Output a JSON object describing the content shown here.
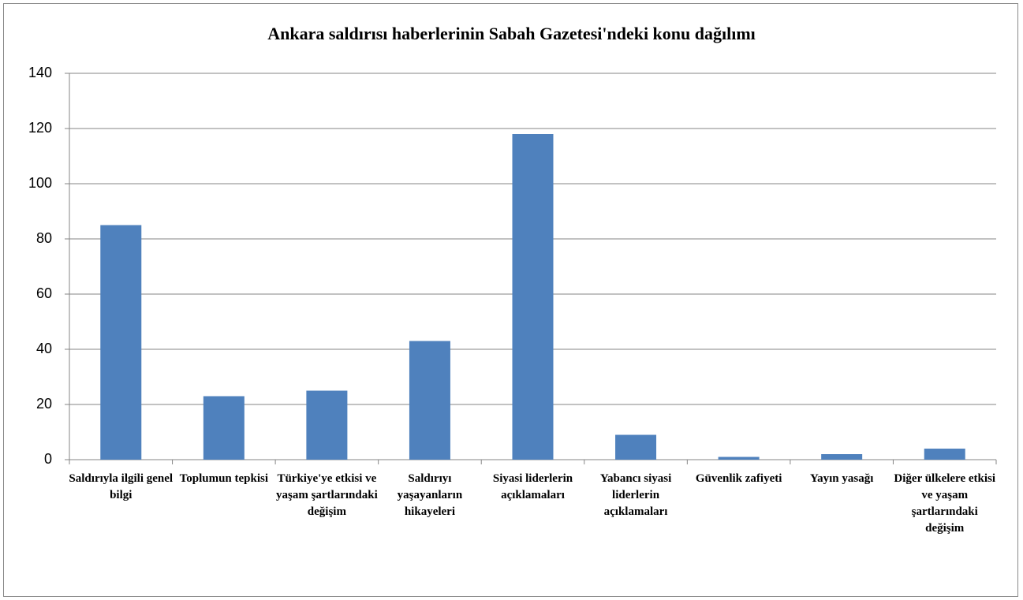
{
  "chart_data": {
    "type": "bar",
    "title": "Ankara saldırısı haberlerinin Sabah Gazetesi'ndeki konu dağılımı",
    "categories": [
      "Saldırıyla ilgili genel bilgi",
      "Toplumun tepkisi",
      "Türkiye'ye etkisi ve yaşam şartlarındaki değişim",
      "Saldırıyı yaşayanların hikayeleri",
      "Siyasi liderlerin açıklamaları",
      "Yabancı siyasi liderlerin açıklamaları",
      "Güvenlik zafiyeti",
      "Yayın yasağı",
      "Diğer ülkelere etkisi ve yaşam şartlarındaki değişim"
    ],
    "values": [
      85,
      23,
      25,
      43,
      118,
      9,
      1,
      2,
      4
    ],
    "color": "#4f81bd",
    "ylim": [
      0,
      140
    ],
    "yticks": [
      0,
      20,
      40,
      60,
      80,
      100,
      120,
      140
    ],
    "grid": true
  }
}
